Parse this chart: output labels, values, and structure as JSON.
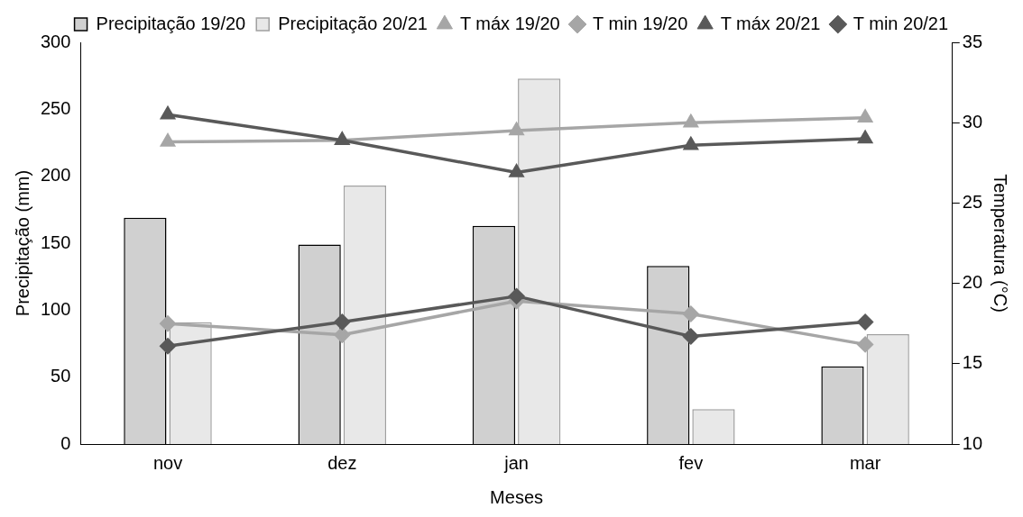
{
  "chart_data": {
    "type": "bar",
    "xlabel": "Meses",
    "ylabel": "Precipitação (mm)",
    "y2label": "Temperatura (°C)",
    "categories": [
      "nov",
      "dez",
      "jan",
      "fev",
      "mar"
    ],
    "series": [
      {
        "name": "Precipitação 19/20",
        "color": "#d0d0d0",
        "values": [
          169,
          149,
          163,
          133,
          58
        ]
      },
      {
        "name": "Precipitação 20/21",
        "color": "#e8e8e8",
        "values": [
          91,
          193,
          273,
          26,
          82
        ]
      },
      {
        "name": "T máx 19/20",
        "type": "line",
        "axis": "y2",
        "marker": "triangle",
        "color": "#a6a6a6",
        "values": [
          28.8,
          28.9,
          29.5,
          30.0,
          30.3
        ]
      },
      {
        "name": "T min 19/20",
        "type": "line",
        "axis": "y2",
        "marker": "diamond",
        "color": "#a6a6a6",
        "values": [
          17.5,
          16.8,
          18.9,
          18.1,
          16.2
        ]
      },
      {
        "name": "T máx 20/21",
        "type": "line",
        "axis": "y2",
        "marker": "triangle",
        "color": "#595959",
        "values": [
          30.5,
          28.9,
          26.9,
          28.6,
          29.0
        ]
      },
      {
        "name": "T min 20/21",
        "type": "line",
        "axis": "y2",
        "marker": "diamond",
        "color": "#595959",
        "values": [
          16.1,
          17.6,
          19.2,
          16.7,
          17.6
        ]
      }
    ],
    "ylim": [
      0,
      300
    ],
    "yticks": [
      0,
      50,
      100,
      150,
      200,
      250,
      300
    ],
    "y2lim": [
      10,
      35
    ],
    "y2ticks": [
      10,
      15,
      20,
      25,
      30,
      35
    ],
    "grid": false,
    "legend": "top"
  }
}
